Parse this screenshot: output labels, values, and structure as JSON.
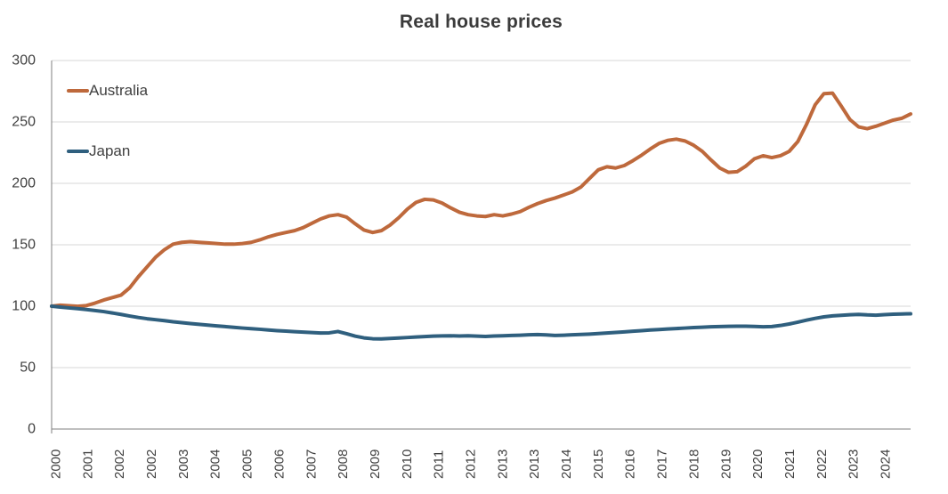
{
  "chart_data": {
    "type": "line",
    "title": "Real house prices",
    "xlabel": "",
    "ylabel": "",
    "ylim": [
      0,
      300
    ],
    "y_ticks": [
      300,
      250,
      200,
      150,
      100,
      50,
      0
    ],
    "grid": "horizontal",
    "legend_position": "inside-top-left",
    "x_tick_labels": [
      "2000",
      "2001",
      "2002",
      "2002",
      "2003",
      "2004",
      "2005",
      "2006",
      "2007",
      "2008",
      "2009",
      "2010",
      "2011",
      "2012",
      "2013",
      "2013",
      "2014",
      "2015",
      "2016",
      "2017",
      "2018",
      "2019",
      "2020",
      "2021",
      "2022",
      "2023",
      "2024"
    ],
    "axis_color": "#7f7f7f",
    "gridline_color": "#d7d7d7",
    "tick_text_color": "#404040",
    "title_color": "#3b3b3b",
    "series": [
      {
        "name": "Australia",
        "color": "#be693c",
        "values": [
          100,
          100.8,
          100.4,
          99.9,
          100.5,
          102.5,
          105,
          107,
          109,
          115,
          124,
          132,
          140,
          146,
          150.5,
          152,
          152.5,
          152,
          151.5,
          151,
          150.5,
          150.5,
          151,
          152,
          154,
          156.5,
          158.5,
          160,
          161.5,
          164,
          167.5,
          171,
          173.5,
          174.5,
          172.5,
          167,
          162,
          160,
          161.5,
          166,
          172,
          179,
          184.5,
          187,
          186.5,
          184,
          180,
          176.5,
          174.5,
          173.5,
          173,
          174.5,
          173.5,
          175,
          177,
          180.5,
          183.5,
          186,
          188,
          190.5,
          193,
          197,
          204,
          211,
          213.5,
          212.5,
          214.5,
          218.5,
          223,
          228,
          232.5,
          235,
          236,
          234.5,
          231,
          226,
          219,
          212.5,
          209,
          209.5,
          214,
          220,
          222.5,
          221,
          222.5,
          226,
          234,
          248,
          264,
          273,
          273.5,
          263,
          252,
          246,
          244.5,
          246.5,
          249,
          251.5,
          253,
          256.5
        ]
      },
      {
        "name": "Japan",
        "color": "#2f5f7e",
        "values": [
          100,
          99.3,
          98.6,
          98,
          97.3,
          96.5,
          95.6,
          94.5,
          93.3,
          92,
          90.8,
          89.8,
          89,
          88.2,
          87.3,
          86.6,
          85.9,
          85.2,
          84.6,
          84,
          83.4,
          82.8,
          82.2,
          81.7,
          81.2,
          80.6,
          80.1,
          79.7,
          79.3,
          78.9,
          78.5,
          78.2,
          78.3,
          79.4,
          77.6,
          75.6,
          74.2,
          73.5,
          73.4,
          73.7,
          74.1,
          74.5,
          74.9,
          75.3,
          75.6,
          75.8,
          75.9,
          75.7,
          75.9,
          75.6,
          75.4,
          75.7,
          75.9,
          76.2,
          76.4,
          76.7,
          76.9,
          76.6,
          76.2,
          76.4,
          76.7,
          77,
          77.3,
          77.7,
          78.2,
          78.6,
          79.1,
          79.6,
          80.1,
          80.6,
          81,
          81.4,
          81.8,
          82.2,
          82.6,
          82.9,
          83.2,
          83.4,
          83.6,
          83.7,
          83.7,
          83.5,
          83.2,
          83.4,
          84.3,
          85.5,
          87,
          88.6,
          90.1,
          91.3,
          92.1,
          92.6,
          93,
          93.3,
          92.9,
          92.7,
          93.1,
          93.5,
          93.7,
          93.8
        ]
      }
    ]
  }
}
